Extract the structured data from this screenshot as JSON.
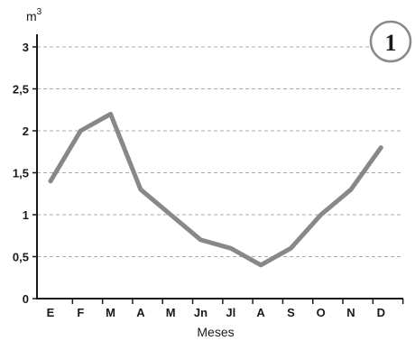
{
  "chart_data": {
    "type": "line",
    "ylabel_base": "m",
    "ylabel_sup": "3",
    "xlabel": "Meses",
    "panel_number": "1",
    "categories": [
      "E",
      "F",
      "M",
      "A",
      "M",
      "Jn",
      "Jl",
      "A",
      "S",
      "O",
      "N",
      "D"
    ],
    "values": [
      1.4,
      2.0,
      2.2,
      1.3,
      1.0,
      0.7,
      0.6,
      0.4,
      0.6,
      1.0,
      1.3,
      1.8
    ],
    "y_ticks": [
      "0",
      "0,5",
      "1",
      "1,5",
      "2",
      "2,5",
      "3"
    ],
    "ylim": [
      0,
      3
    ],
    "grid": "horizontal dashed",
    "line_color": "#888888",
    "grid_color": "#a9a9a9",
    "axis_color": "#1a1a1a"
  }
}
